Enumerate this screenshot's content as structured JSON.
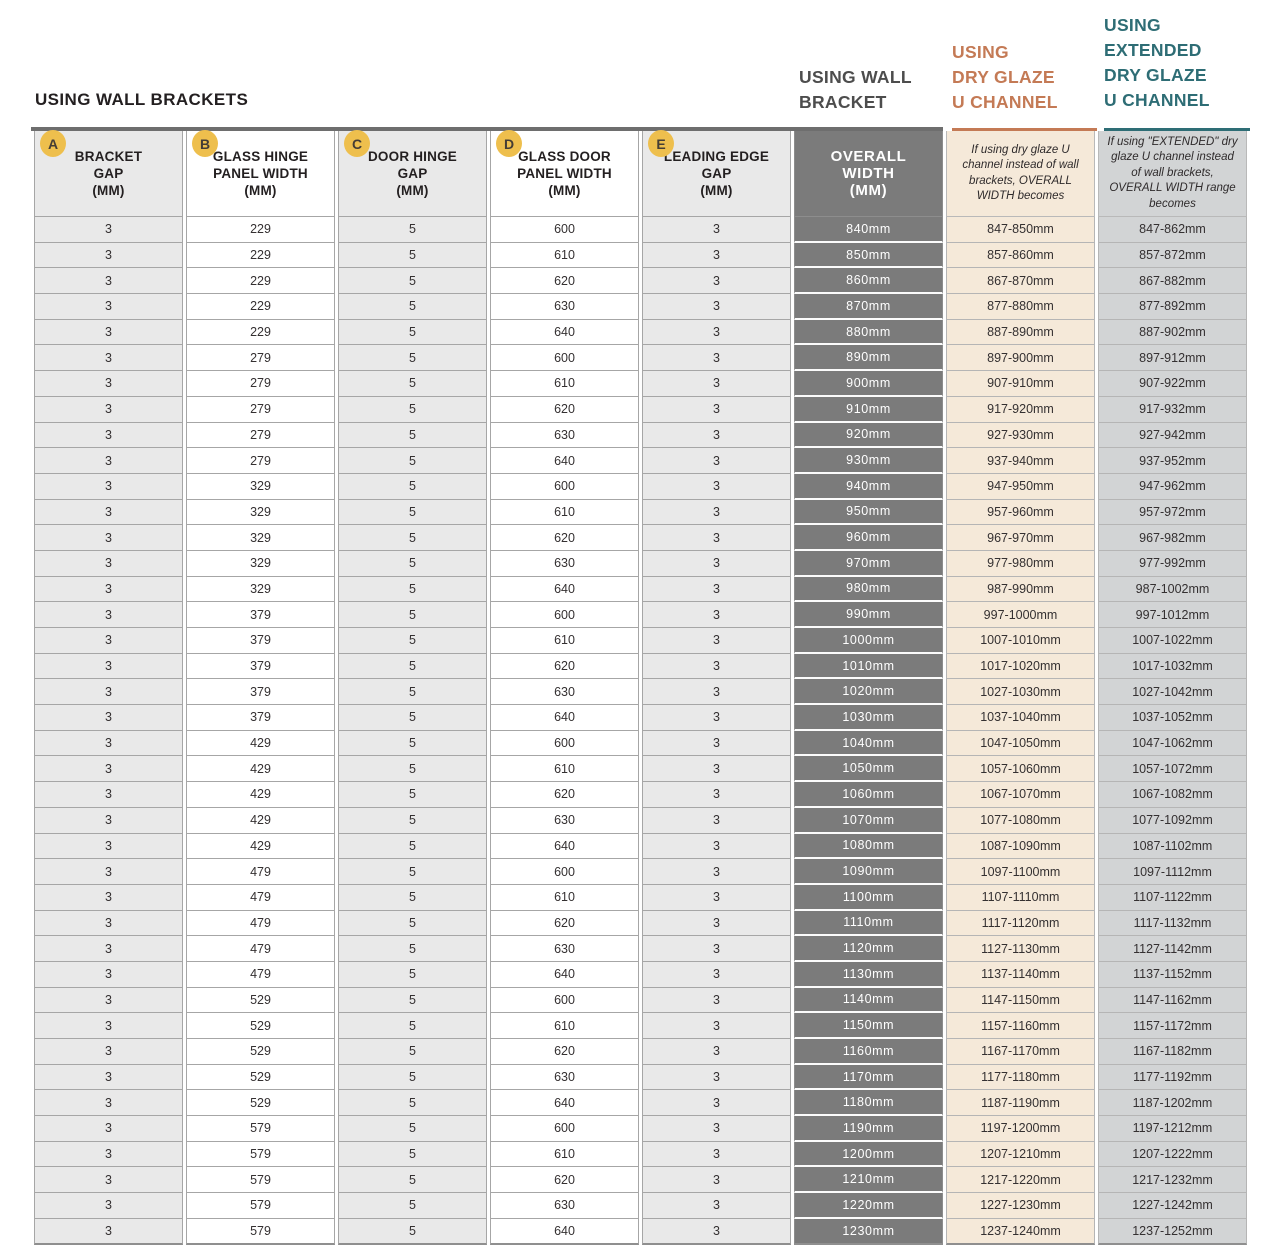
{
  "titles": {
    "main": "USING WALL BRACKETS",
    "wall_bracket": "USING WALL\nBRACKET",
    "dry_glaze": "USING\nDRY GLAZE\nU CHANNEL",
    "extended_dry_glaze": "USING\nEXTENDED\nDRY GLAZE\nU CHANNEL"
  },
  "colors": {
    "accent_yellow": "#eebf4d",
    "accent_orange": "#c47a55",
    "accent_teal": "#2e6d75",
    "dark_cell": "#7b7b7b",
    "light_cell": "#e9e9e9",
    "peach_cell": "#f5e9d9",
    "gray_cell": "#d2d4d5"
  },
  "badges": [
    "A",
    "B",
    "C",
    "D",
    "E"
  ],
  "table": {
    "columns": [
      {
        "key": "bracket-gap",
        "label": "BRACKET\nGAP\n(MM)"
      },
      {
        "key": "glass-hinge-panel-width",
        "label": "GLASS HINGE\nPANEL WIDTH\n(MM)"
      },
      {
        "key": "door-hinge-gap",
        "label": "DOOR HINGE\nGAP\n(MM)"
      },
      {
        "key": "glass-door-panel-width",
        "label": "GLASS DOOR\nPANEL WIDTH\n(MM)"
      },
      {
        "key": "leading-edge-gap",
        "label": "LEADING EDGE\nGAP\n(MM)"
      },
      {
        "key": "overall-width",
        "label": "OVERALL\nWIDTH\n(MM)"
      },
      {
        "key": "dry-glaze-width",
        "label": "If using dry glaze U channel instead of wall brackets, OVERALL WIDTH becomes"
      },
      {
        "key": "extended-dry-glaze-width",
        "label": "If using \"EXTENDED\" dry glaze U channel instead of wall brackets, OVERALL WIDTH range becomes"
      }
    ],
    "rows": [
      [
        "3",
        "229",
        "5",
        "600",
        "3",
        "840mm",
        "847-850mm",
        "847-862mm"
      ],
      [
        "3",
        "229",
        "5",
        "610",
        "3",
        "850mm",
        "857-860mm",
        "857-872mm"
      ],
      [
        "3",
        "229",
        "5",
        "620",
        "3",
        "860mm",
        "867-870mm",
        "867-882mm"
      ],
      [
        "3",
        "229",
        "5",
        "630",
        "3",
        "870mm",
        "877-880mm",
        "877-892mm"
      ],
      [
        "3",
        "229",
        "5",
        "640",
        "3",
        "880mm",
        "887-890mm",
        "887-902mm"
      ],
      [
        "3",
        "279",
        "5",
        "600",
        "3",
        "890mm",
        "897-900mm",
        "897-912mm"
      ],
      [
        "3",
        "279",
        "5",
        "610",
        "3",
        "900mm",
        "907-910mm",
        "907-922mm"
      ],
      [
        "3",
        "279",
        "5",
        "620",
        "3",
        "910mm",
        "917-920mm",
        "917-932mm"
      ],
      [
        "3",
        "279",
        "5",
        "630",
        "3",
        "920mm",
        "927-930mm",
        "927-942mm"
      ],
      [
        "3",
        "279",
        "5",
        "640",
        "3",
        "930mm",
        "937-940mm",
        "937-952mm"
      ],
      [
        "3",
        "329",
        "5",
        "600",
        "3",
        "940mm",
        "947-950mm",
        "947-962mm"
      ],
      [
        "3",
        "329",
        "5",
        "610",
        "3",
        "950mm",
        "957-960mm",
        "957-972mm"
      ],
      [
        "3",
        "329",
        "5",
        "620",
        "3",
        "960mm",
        "967-970mm",
        "967-982mm"
      ],
      [
        "3",
        "329",
        "5",
        "630",
        "3",
        "970mm",
        "977-980mm",
        "977-992mm"
      ],
      [
        "3",
        "329",
        "5",
        "640",
        "3",
        "980mm",
        "987-990mm",
        "987-1002mm"
      ],
      [
        "3",
        "379",
        "5",
        "600",
        "3",
        "990mm",
        "997-1000mm",
        "997-1012mm"
      ],
      [
        "3",
        "379",
        "5",
        "610",
        "3",
        "1000mm",
        "1007-1010mm",
        "1007-1022mm"
      ],
      [
        "3",
        "379",
        "5",
        "620",
        "3",
        "1010mm",
        "1017-1020mm",
        "1017-1032mm"
      ],
      [
        "3",
        "379",
        "5",
        "630",
        "3",
        "1020mm",
        "1027-1030mm",
        "1027-1042mm"
      ],
      [
        "3",
        "379",
        "5",
        "640",
        "3",
        "1030mm",
        "1037-1040mm",
        "1037-1052mm"
      ],
      [
        "3",
        "429",
        "5",
        "600",
        "3",
        "1040mm",
        "1047-1050mm",
        "1047-1062mm"
      ],
      [
        "3",
        "429",
        "5",
        "610",
        "3",
        "1050mm",
        "1057-1060mm",
        "1057-1072mm"
      ],
      [
        "3",
        "429",
        "5",
        "620",
        "3",
        "1060mm",
        "1067-1070mm",
        "1067-1082mm"
      ],
      [
        "3",
        "429",
        "5",
        "630",
        "3",
        "1070mm",
        "1077-1080mm",
        "1077-1092mm"
      ],
      [
        "3",
        "429",
        "5",
        "640",
        "3",
        "1080mm",
        "1087-1090mm",
        "1087-1102mm"
      ],
      [
        "3",
        "479",
        "5",
        "600",
        "3",
        "1090mm",
        "1097-1100mm",
        "1097-1112mm"
      ],
      [
        "3",
        "479",
        "5",
        "610",
        "3",
        "1100mm",
        "1107-1110mm",
        "1107-1122mm"
      ],
      [
        "3",
        "479",
        "5",
        "620",
        "3",
        "1110mm",
        "1117-1120mm",
        "1117-1132mm"
      ],
      [
        "3",
        "479",
        "5",
        "630",
        "3",
        "1120mm",
        "1127-1130mm",
        "1127-1142mm"
      ],
      [
        "3",
        "479",
        "5",
        "640",
        "3",
        "1130mm",
        "1137-1140mm",
        "1137-1152mm"
      ],
      [
        "3",
        "529",
        "5",
        "600",
        "3",
        "1140mm",
        "1147-1150mm",
        "1147-1162mm"
      ],
      [
        "3",
        "529",
        "5",
        "610",
        "3",
        "1150mm",
        "1157-1160mm",
        "1157-1172mm"
      ],
      [
        "3",
        "529",
        "5",
        "620",
        "3",
        "1160mm",
        "1167-1170mm",
        "1167-1182mm"
      ],
      [
        "3",
        "529",
        "5",
        "630",
        "3",
        "1170mm",
        "1177-1180mm",
        "1177-1192mm"
      ],
      [
        "3",
        "529",
        "5",
        "640",
        "3",
        "1180mm",
        "1187-1190mm",
        "1187-1202mm"
      ],
      [
        "3",
        "579",
        "5",
        "600",
        "3",
        "1190mm",
        "1197-1200mm",
        "1197-1212mm"
      ],
      [
        "3",
        "579",
        "5",
        "610",
        "3",
        "1200mm",
        "1207-1210mm",
        "1207-1222mm"
      ],
      [
        "3",
        "579",
        "5",
        "620",
        "3",
        "1210mm",
        "1217-1220mm",
        "1217-1232mm"
      ],
      [
        "3",
        "579",
        "5",
        "630",
        "3",
        "1220mm",
        "1227-1230mm",
        "1227-1242mm"
      ],
      [
        "3",
        "579",
        "5",
        "640",
        "3",
        "1230mm",
        "1237-1240mm",
        "1237-1252mm"
      ]
    ]
  }
}
